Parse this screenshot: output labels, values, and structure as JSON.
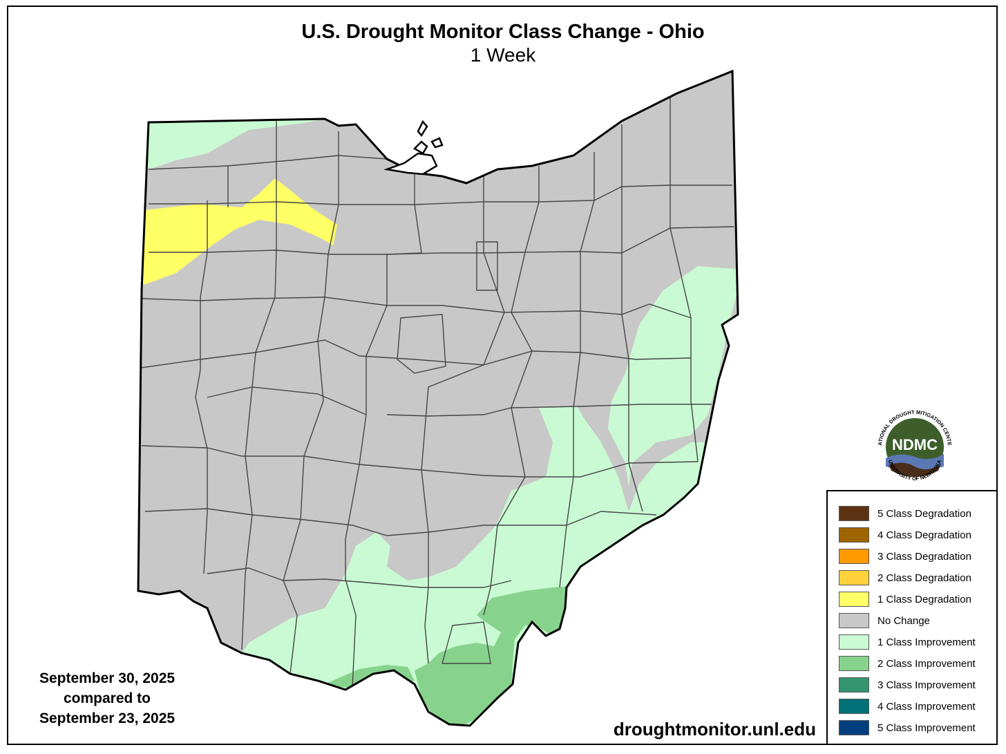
{
  "title": "U.S. Drought Monitor Class Change - Ohio",
  "subtitle": "1 Week",
  "date_lines": [
    "September 30, 2025",
    "compared to",
    "September 23, 2025"
  ],
  "source_url": "droughtmonitor.unl.edu",
  "logo": {
    "acronym": "NDMC",
    "ring_top": "NATIONAL DROUGHT MITIGATION CENTER",
    "ring_bottom": "UNIVERSITY OF NEBRASKA"
  },
  "legend": [
    {
      "label": "5 Class Degradation",
      "color": "#5c3312"
    },
    {
      "label": "4 Class Degradation",
      "color": "#9e6400"
    },
    {
      "label": "3 Class Degradation",
      "color": "#ff9900"
    },
    {
      "label": "2 Class Degradation",
      "color": "#ffd23c"
    },
    {
      "label": "1 Class Degradation",
      "color": "#ffff66"
    },
    {
      "label": "No Change",
      "color": "#c8c8c8"
    },
    {
      "label": "1 Class Improvement",
      "color": "#c9fad3"
    },
    {
      "label": "2 Class Improvement",
      "color": "#87d38d"
    },
    {
      "label": "3 Class Improvement",
      "color": "#359571"
    },
    {
      "label": "4 Class Improvement",
      "color": "#007176"
    },
    {
      "label": "5 Class Improvement",
      "color": "#003e7e"
    }
  ],
  "map_colors": {
    "no_change": "#c8c8c8",
    "improve1": "#c9fad3",
    "improve2": "#87d38d",
    "degrade1": "#ffff66",
    "county_line": "#444444",
    "state_line": "#000000"
  }
}
